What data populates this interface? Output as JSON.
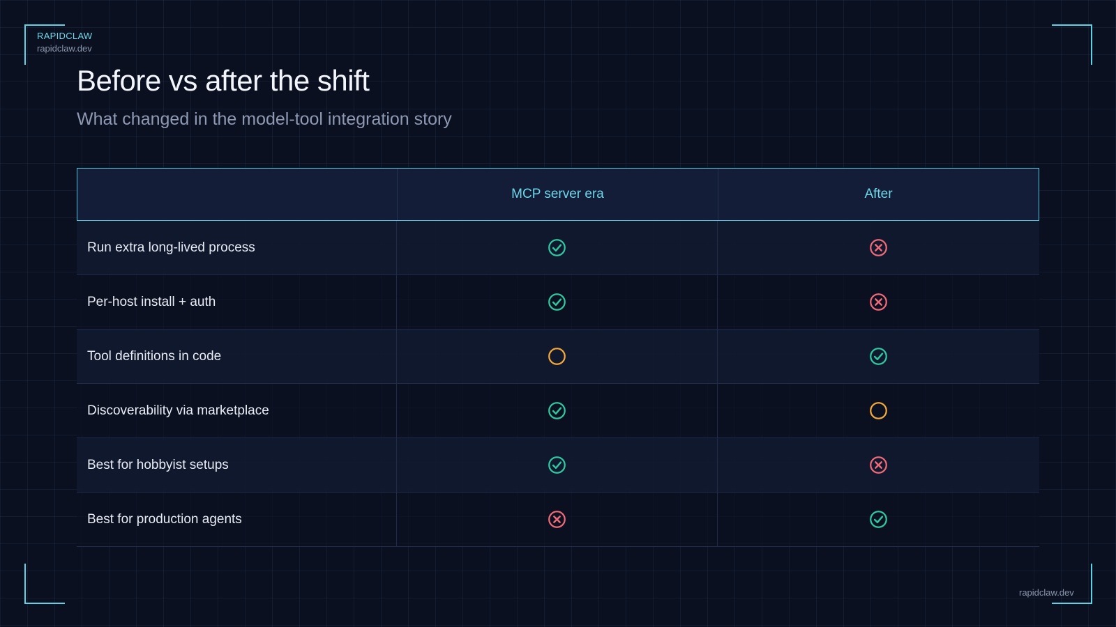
{
  "brand": {
    "name": "RAPIDCLAW",
    "url": "rapidclaw.dev"
  },
  "slide": {
    "title": "Before vs after the shift",
    "subtitle": "What changed in the model-tool integration story"
  },
  "table": {
    "columns": [
      "",
      "MCP server era",
      "After"
    ],
    "rows": [
      {
        "label": "Run extra long-lived process",
        "mcp": "check-icon",
        "after": "cross-icon"
      },
      {
        "label": "Per-host install + auth",
        "mcp": "check-icon",
        "after": "cross-icon"
      },
      {
        "label": "Tool definitions in code",
        "mcp": "partial-icon",
        "after": "check-icon"
      },
      {
        "label": "Discoverability via marketplace",
        "mcp": "check-icon",
        "after": "partial-icon"
      },
      {
        "label": "Best for hobbyist setups",
        "mcp": "check-icon",
        "after": "cross-icon"
      },
      {
        "label": "Best for production agents",
        "mcp": "cross-icon",
        "after": "check-icon"
      }
    ]
  },
  "footer": {
    "url": "rapidclaw.dev"
  },
  "colors": {
    "accent": "#5fd3e6",
    "check": "#2ec9a0",
    "cross": "#f06a78",
    "partial": "#f5a83a",
    "background": "#0b1020"
  }
}
